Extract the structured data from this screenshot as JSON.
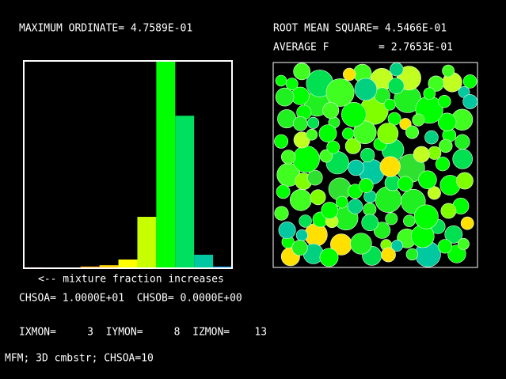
{
  "header": {
    "max_ordinate": "MAXIMUM ORDINATE= 4.7589E-01",
    "rms": "ROOT MEAN SQUARE= 4.5466E-01",
    "average": "AVERAGE F        = 2.7653E-01"
  },
  "chart_data": {
    "type": "bar",
    "x_label": "<-- mixture fraction increases",
    "values": [
      0.002,
      0.001,
      0.001,
      0.004,
      0.007,
      0.02,
      0.118,
      0.47589,
      0.35,
      0.031,
      0.004
    ],
    "colors": [
      "#ff2020",
      "#ff4000",
      "#ff7000",
      "#ffa000",
      "#ffd000",
      "#ffff00",
      "#c8ff00",
      "#00ff00",
      "#00e060",
      "#00c8a0",
      "#0090e0"
    ],
    "ylim": [
      0,
      0.47589
    ]
  },
  "info": {
    "chsoa": "CHSOA= 1.0000E+01  CHSOB= 0.0000E+00",
    "monitor": "IXMON=     3  IYMON=     8  IZMON=    13",
    "footer": "MFM; 3D cmbstr; CHSOA=10"
  }
}
